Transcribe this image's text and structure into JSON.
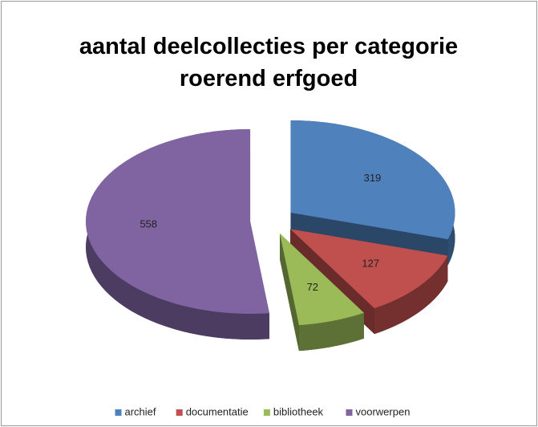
{
  "chart_data": {
    "type": "pie3d",
    "title": "aantal  deelcollecties per categorie roerend erfgoed",
    "categories": [
      "archief",
      "documentatie",
      "bibliotheek",
      "voorwerpen"
    ],
    "values": [
      319,
      127,
      72,
      558
    ],
    "colors": [
      "#4f81bd",
      "#c0504d",
      "#9bbb59",
      "#8064a2"
    ],
    "legend": "bottom"
  }
}
